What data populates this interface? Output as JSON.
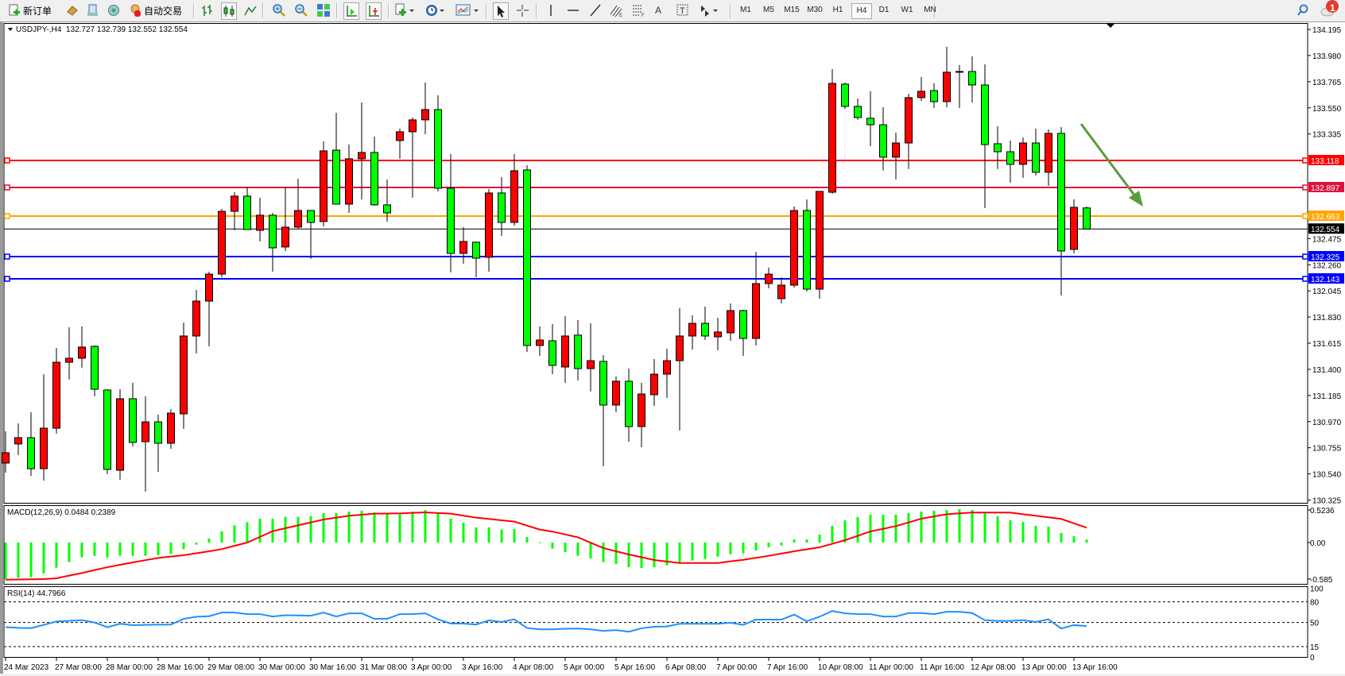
{
  "toolbar": {
    "new_order_label": "新订单",
    "auto_trading_label": "自动交易",
    "timeframes": [
      "M1",
      "M5",
      "M15",
      "M30",
      "H1",
      "H4",
      "D1",
      "W1",
      "MN"
    ],
    "selected_timeframe": "H4",
    "notification_count": "1"
  },
  "chart_header": {
    "symbol": "USDJPY-,H4",
    "ohlc": "132.727 132.739 132.552 132.554"
  },
  "colors": {
    "bull_candle": "#ff0000",
    "bear_candle": "#00ff00",
    "macd_histogram": "#00ff00",
    "macd_signal": "#ff0000",
    "rsi_line": "#1e90ff",
    "arrow": "#5b9b3c"
  },
  "chart_data": {
    "type": "candlestick",
    "symbol": "USDJPY-",
    "timeframe": "H4",
    "ylim": [
      130.325,
      134.195
    ],
    "price_ticks": [
      "134.195",
      "133.980",
      "133.765",
      "133.550",
      "133.335",
      "132.475",
      "132.260",
      "132.045",
      "131.830",
      "131.615",
      "131.400",
      "131.185",
      "130.970",
      "130.755",
      "130.540",
      "130.325"
    ],
    "time_labels": [
      {
        "bar": 0,
        "text": "24 Mar 2023"
      },
      {
        "bar": 4,
        "text": "27 Mar 08:00"
      },
      {
        "bar": 8,
        "text": "28 Mar 00:00"
      },
      {
        "bar": 12,
        "text": "28 Mar 16:00"
      },
      {
        "bar": 16,
        "text": "29 Mar 08:00"
      },
      {
        "bar": 20,
        "text": "30 Mar 00:00"
      },
      {
        "bar": 24,
        "text": "30 Mar 16:00"
      },
      {
        "bar": 28,
        "text": "31 Mar 08:00"
      },
      {
        "bar": 32,
        "text": "3 Apr 00:00"
      },
      {
        "bar": 36,
        "text": "3 Apr 16:00"
      },
      {
        "bar": 40,
        "text": "4 Apr 08:00"
      },
      {
        "bar": 44,
        "text": "5 Apr 00:00"
      },
      {
        "bar": 48,
        "text": "5 Apr 16:00"
      },
      {
        "bar": 52,
        "text": "6 Apr 08:00"
      },
      {
        "bar": 56,
        "text": "7 Apr 00:00"
      },
      {
        "bar": 60,
        "text": "7 Apr 16:00"
      },
      {
        "bar": 64,
        "text": "10 Apr 08:00"
      },
      {
        "bar": 68,
        "text": "11 Apr 00:00"
      },
      {
        "bar": 72,
        "text": "11 Apr 16:00"
      },
      {
        "bar": 76,
        "text": "12 Apr 08:00"
      },
      {
        "bar": 80,
        "text": "13 Apr 00:00"
      },
      {
        "bar": 84,
        "text": "13 Apr 16:00"
      }
    ],
    "ohlc": [
      [
        130.629,
        130.89,
        130.55,
        130.714
      ],
      [
        130.786,
        130.955,
        130.694,
        130.838
      ],
      [
        130.838,
        131.047,
        130.524,
        130.583
      ],
      [
        130.583,
        131.36,
        130.485,
        130.916
      ],
      [
        130.916,
        131.576,
        130.871,
        131.458
      ],
      [
        131.458,
        131.746,
        131.315,
        131.491
      ],
      [
        131.491,
        131.752,
        131.413,
        131.583
      ],
      [
        131.589,
        131.596,
        131.178,
        131.236
      ],
      [
        131.23,
        131.236,
        130.537,
        130.577
      ],
      [
        130.57,
        131.236,
        130.492,
        131.158
      ],
      [
        131.158,
        131.289,
        130.766,
        130.799
      ],
      [
        130.805,
        131.178,
        130.394,
        130.968
      ],
      [
        130.968,
        131.027,
        130.557,
        130.792
      ],
      [
        130.792,
        131.073,
        130.746,
        131.04
      ],
      [
        131.034,
        131.785,
        130.91,
        131.674
      ],
      [
        131.674,
        132.053,
        131.53,
        131.961
      ],
      [
        131.961,
        132.203,
        131.589,
        132.183
      ],
      [
        132.183,
        132.719,
        132.157,
        132.699
      ],
      [
        132.699,
        132.856,
        132.543,
        132.824
      ],
      [
        132.824,
        132.895,
        132.549,
        132.549
      ],
      [
        132.543,
        132.811,
        132.451,
        132.667
      ],
      [
        132.667,
        132.686,
        132.203,
        132.399
      ],
      [
        132.406,
        132.895,
        132.373,
        132.569
      ],
      [
        132.569,
        132.967,
        132.556,
        132.706
      ],
      [
        132.706,
        132.706,
        132.308,
        132.608
      ],
      [
        132.615,
        133.274,
        132.575,
        133.196
      ],
      [
        133.202,
        133.509,
        132.758,
        132.758
      ],
      [
        132.758,
        133.248,
        132.686,
        133.131
      ],
      [
        133.131,
        133.594,
        132.797,
        133.183
      ],
      [
        133.183,
        133.313,
        132.745,
        132.752
      ],
      [
        132.752,
        132.961,
        132.615,
        132.686
      ],
      [
        133.281,
        133.379,
        133.131,
        133.353
      ],
      [
        133.353,
        133.47,
        132.811,
        133.451
      ],
      [
        133.451,
        133.758,
        133.333,
        133.536
      ],
      [
        133.536,
        133.653,
        132.863,
        132.889
      ],
      [
        132.889,
        133.17,
        132.197,
        132.353
      ],
      [
        132.353,
        132.569,
        132.268,
        132.451
      ],
      [
        132.445,
        132.451,
        132.157,
        132.314
      ],
      [
        132.321,
        132.882,
        132.203,
        132.85
      ],
      [
        132.85,
        132.98,
        132.497,
        132.608
      ],
      [
        132.608,
        133.17,
        132.582,
        133.033
      ],
      [
        133.039,
        133.078,
        131.543,
        131.596
      ],
      [
        131.596,
        131.752,
        131.511,
        131.641
      ],
      [
        131.635,
        131.772,
        131.36,
        131.432
      ],
      [
        131.419,
        131.837,
        131.289,
        131.674
      ],
      [
        131.681,
        131.805,
        131.308,
        131.406
      ],
      [
        131.406,
        131.778,
        131.217,
        131.471
      ],
      [
        131.465,
        131.517,
        130.603,
        131.106
      ],
      [
        131.106,
        131.341,
        131.047,
        131.302
      ],
      [
        131.302,
        131.406,
        130.805,
        130.929
      ],
      [
        130.929,
        131.289,
        130.759,
        131.197
      ],
      [
        131.191,
        131.485,
        131.099,
        131.36
      ],
      [
        131.36,
        131.569,
        131.165,
        131.471
      ],
      [
        131.471,
        131.903,
        130.897,
        131.674
      ],
      [
        131.674,
        131.844,
        131.563,
        131.778
      ],
      [
        131.778,
        131.916,
        131.641,
        131.674
      ],
      [
        131.667,
        131.824,
        131.556,
        131.707
      ],
      [
        131.7,
        131.942,
        131.635,
        131.883
      ],
      [
        131.883,
        131.889,
        131.511,
        131.654
      ],
      [
        131.654,
        132.366,
        131.596,
        132.105
      ],
      [
        132.105,
        132.236,
        132.066,
        132.183
      ],
      [
        131.981,
        132.157,
        131.942,
        132.092
      ],
      [
        132.092,
        132.739,
        132.072,
        132.706
      ],
      [
        132.706,
        132.797,
        132.04,
        132.059
      ],
      [
        132.059,
        132.863,
        131.981,
        132.863
      ],
      [
        132.856,
        133.869,
        132.843,
        133.751
      ],
      [
        133.745,
        133.758,
        133.542,
        133.562
      ],
      [
        133.562,
        133.627,
        133.451,
        133.47
      ],
      [
        133.464,
        133.686,
        133.235,
        133.411
      ],
      [
        133.411,
        133.555,
        133.033,
        133.144
      ],
      [
        133.144,
        133.346,
        132.961,
        133.261
      ],
      [
        133.261,
        133.666,
        133.046,
        133.634
      ],
      [
        133.634,
        133.803,
        133.607,
        133.686
      ],
      [
        133.692,
        133.751,
        133.549,
        133.601
      ],
      [
        133.601,
        134.052,
        133.555,
        133.843
      ],
      [
        133.849,
        133.901,
        133.549,
        133.849
      ],
      [
        133.849,
        133.973,
        133.594,
        133.738
      ],
      [
        133.738,
        133.908,
        132.726,
        133.248
      ],
      [
        133.255,
        133.398,
        133.046,
        133.189
      ],
      [
        133.189,
        133.281,
        132.935,
        133.085
      ],
      [
        133.085,
        133.307,
        132.974,
        133.261
      ],
      [
        133.261,
        133.379,
        132.993,
        133.02
      ],
      [
        133.02,
        133.372,
        132.909,
        133.34
      ],
      [
        133.34,
        133.392,
        132.007,
        132.373
      ],
      [
        132.386,
        132.797,
        132.353,
        132.732
      ],
      [
        132.727,
        132.739,
        132.552,
        132.554
      ]
    ],
    "current_price": {
      "value": 132.554,
      "label": "132.554"
    },
    "horizontal_lines": [
      {
        "value": 133.118,
        "label": "133.118",
        "color": "#ff0000"
      },
      {
        "value": 132.897,
        "label": "132.897",
        "color": "#dc143c"
      },
      {
        "value": 132.663,
        "label": "132.663",
        "color": "#ffa500"
      },
      {
        "value": 132.325,
        "label": "132.325",
        "color": "#0000ff"
      },
      {
        "value": 132.143,
        "label": "132.143",
        "color": "#0000ff"
      }
    ],
    "macd": {
      "title": "MACD(12,26,9) 0.0484 0.2389",
      "ylim": [
        -0.585,
        0.5236
      ],
      "ticks": [
        "0.5236",
        "0.00",
        "-0.585"
      ],
      "histogram": [
        -0.587,
        -0.566,
        -0.557,
        -0.494,
        -0.404,
        -0.315,
        -0.238,
        -0.213,
        -0.238,
        -0.213,
        -0.213,
        -0.213,
        -0.204,
        -0.183,
        -0.106,
        -0.034,
        0.064,
        0.179,
        0.277,
        0.328,
        0.383,
        0.383,
        0.413,
        0.413,
        0.426,
        0.472,
        0.472,
        0.498,
        0.511,
        0.485,
        0.455,
        0.455,
        0.498,
        0.523,
        0.472,
        0.383,
        0.319,
        0.243,
        0.243,
        0.209,
        0.217,
        0.089,
        0.005,
        -0.098,
        -0.153,
        -0.213,
        -0.255,
        -0.315,
        -0.345,
        -0.396,
        -0.409,
        -0.396,
        -0.366,
        -0.315,
        -0.289,
        -0.264,
        -0.226,
        -0.187,
        -0.174,
        -0.128,
        -0.077,
        -0.047,
        0.051,
        0.051,
        0.128,
        0.268,
        0.357,
        0.409,
        0.447,
        0.447,
        0.447,
        0.472,
        0.498,
        0.511,
        0.523,
        0.536,
        0.523,
        0.472,
        0.421,
        0.357,
        0.332,
        0.268,
        0.255,
        0.153,
        0.102,
        0.0484
      ],
      "signal": [
        -0.596,
        -0.593,
        -0.59,
        -0.587,
        -0.574,
        -0.531,
        -0.489,
        -0.442,
        -0.396,
        -0.357,
        -0.319,
        -0.283,
        -0.247,
        -0.225,
        -0.204,
        -0.172,
        -0.14,
        -0.106,
        -0.053,
        0.0,
        0.091,
        0.183,
        0.23,
        0.277,
        0.323,
        0.37,
        0.4,
        0.43,
        0.447,
        0.464,
        0.466,
        0.468,
        0.476,
        0.485,
        0.474,
        0.464,
        0.432,
        0.4,
        0.379,
        0.357,
        0.336,
        0.272,
        0.209,
        0.176,
        0.13,
        0.085,
        -0.002,
        -0.089,
        -0.14,
        -0.191,
        -0.236,
        -0.281,
        -0.305,
        -0.328,
        -0.328,
        -0.328,
        -0.328,
        -0.302,
        -0.277,
        -0.245,
        -0.213,
        -0.177,
        -0.14,
        -0.108,
        -0.077,
        -0.02,
        0.038,
        0.108,
        0.179,
        0.221,
        0.264,
        0.323,
        0.383,
        0.419,
        0.455,
        0.468,
        0.481,
        0.481,
        0.481,
        0.481,
        0.455,
        0.43,
        0.405,
        0.379,
        0.309,
        0.2389
      ]
    },
    "rsi": {
      "title": "RSI(14) 44.7966",
      "ylim": [
        0,
        100
      ],
      "ticks": [
        "100",
        "80",
        "50",
        "15",
        "0"
      ],
      "levels": [
        80,
        50,
        15
      ],
      "values": [
        43.2,
        42.2,
        41.8,
        46.5,
        51.5,
        52.5,
        53.4,
        50.0,
        43.2,
        48.1,
        46.2,
        46.5,
        46.8,
        47.0,
        55.3,
        58.4,
        59.1,
        64.4,
        64.4,
        62.2,
        62.2,
        58.7,
        60.6,
        60.3,
        59.9,
        64.4,
        58.7,
        63.3,
        63.3,
        55.3,
        55.3,
        62.2,
        62.2,
        63.3,
        54.6,
        48.5,
        48.5,
        47.0,
        53.0,
        50.8,
        54.6,
        42.0,
        40.1,
        40.1,
        41.0,
        41.3,
        40.1,
        37.8,
        38.9,
        36.7,
        41.6,
        43.9,
        44.3,
        48.1,
        48.1,
        48.1,
        48.1,
        49.6,
        46.6,
        54.2,
        54.2,
        54.2,
        61.4,
        51.9,
        58.4,
        66.7,
        63.3,
        62.2,
        62.2,
        58.7,
        58.7,
        63.7,
        63.7,
        62.2,
        65.6,
        65.6,
        63.7,
        53.4,
        52.3,
        52.3,
        53.4,
        50.8,
        54.6,
        41.3,
        46.2,
        44.7966
      ]
    }
  }
}
